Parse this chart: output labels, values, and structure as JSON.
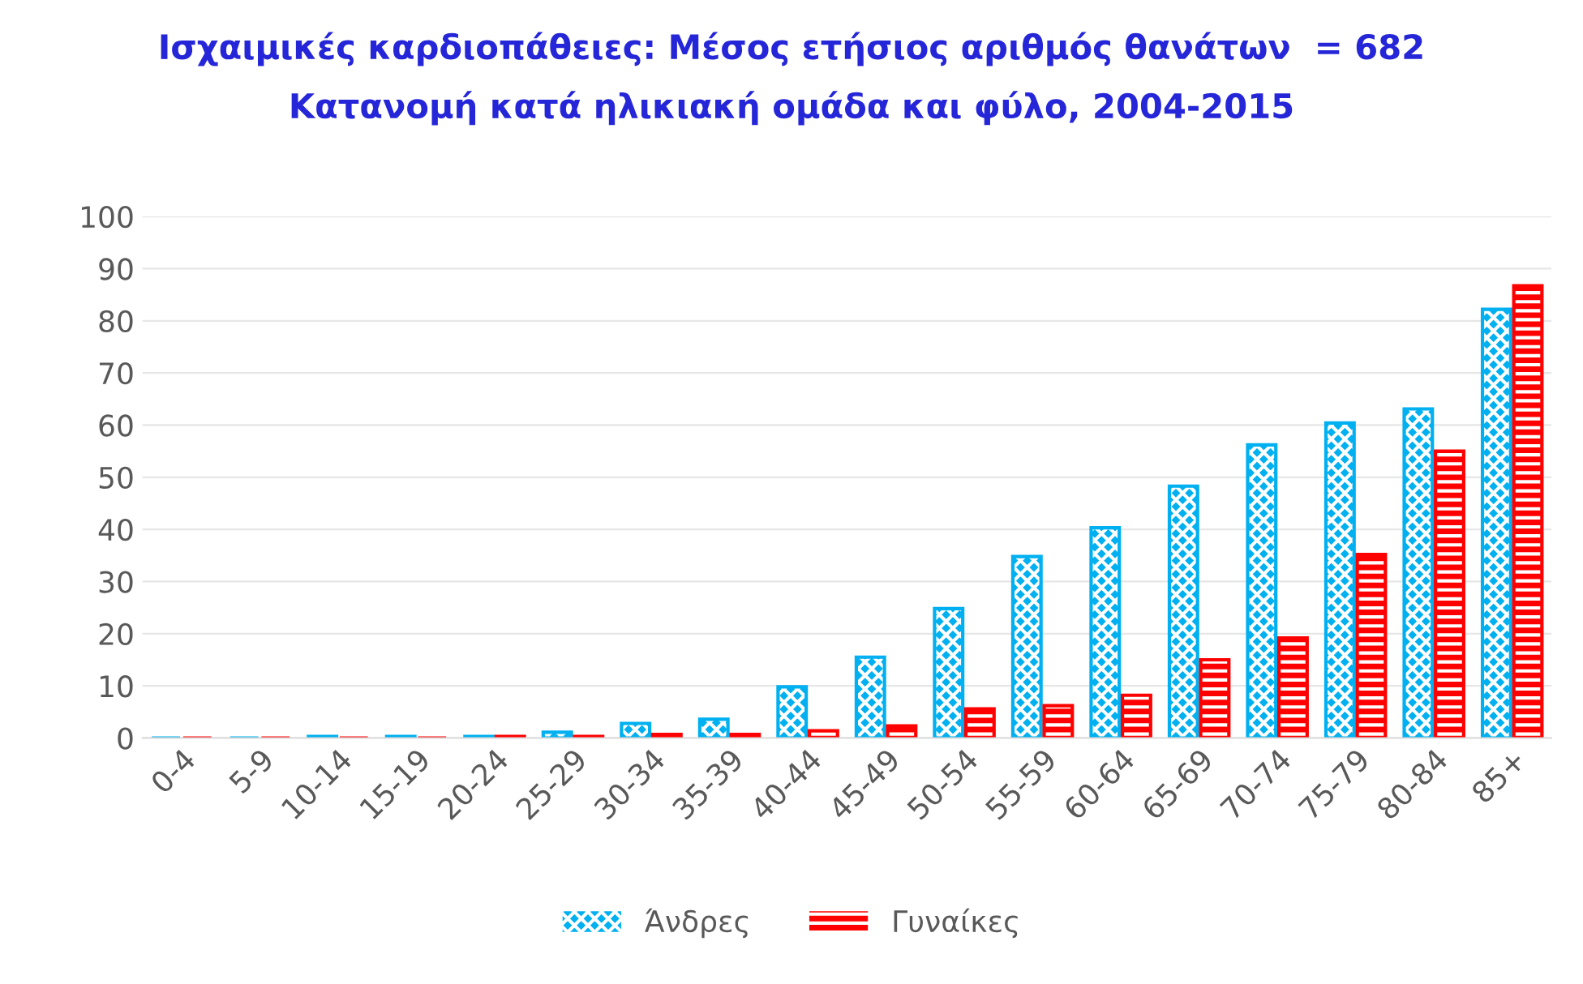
{
  "chart_data": {
    "type": "bar",
    "title": "Ισχαιμικές καρδιοπάθειες: Μέσος ετήσιος αριθμός θανάτων  = 682",
    "subtitle": "Κατανομή κατά ηλικιακή ομάδα και φύλο, 2004-2015",
    "categories": [
      "0-4",
      "5-9",
      "10-14",
      "15-19",
      "20-24",
      "25-29",
      "30-34",
      "35-39",
      "40-44",
      "45-49",
      "50-54",
      "55-59",
      "60-64",
      "65-69",
      "70-74",
      "75-79",
      "80-84",
      "85+"
    ],
    "series": [
      {
        "name": "Άνδρες",
        "color": "#00b0f0",
        "values": [
          0,
          0,
          0.3,
          0.3,
          0.3,
          1.1,
          2.8,
          3.6,
          9.8,
          15.5,
          24.8,
          34.8,
          40.3,
          48.3,
          56.2,
          60.4,
          63.1,
          82.2
        ]
      },
      {
        "name": "Γυναίκες",
        "color": "#ff0000",
        "values": [
          0,
          0,
          0,
          0,
          0.3,
          0.3,
          0.7,
          0.7,
          1.4,
          2.3,
          5.6,
          6.2,
          8.2,
          15,
          19.2,
          35.2,
          55,
          86.7
        ]
      }
    ],
    "ylim": [
      0,
      100
    ],
    "yticks": [
      0,
      10,
      20,
      30,
      40,
      50,
      60,
      70,
      80,
      90,
      100
    ],
    "grid": "y",
    "legend": "bottom"
  }
}
